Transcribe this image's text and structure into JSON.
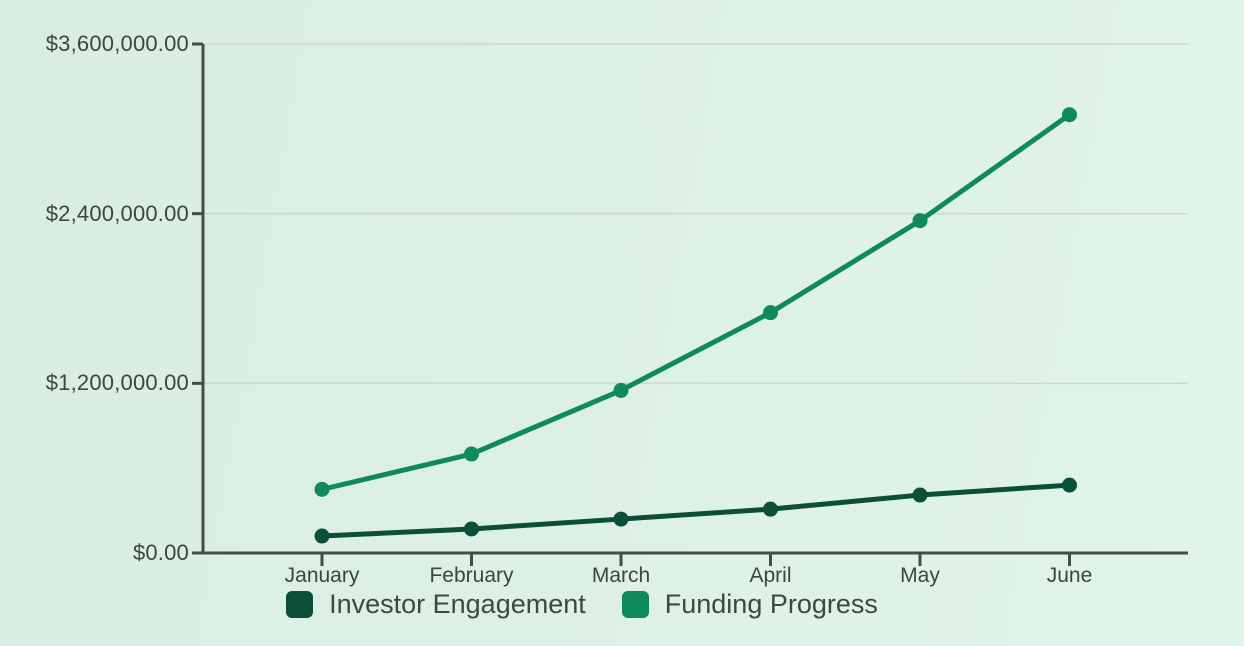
{
  "chart_data": {
    "type": "line",
    "title": "",
    "xlabel": "",
    "ylabel": "",
    "x": [
      "January",
      "February",
      "March",
      "April",
      "May",
      "June"
    ],
    "series": [
      {
        "name": "Investor Engagement",
        "color": "#0b4f38",
        "values": [
          120000,
          170000,
          240000,
          310000,
          410000,
          480000
        ]
      },
      {
        "name": "Funding Progress",
        "color": "#0e8a5c",
        "values": [
          450000,
          700000,
          1150000,
          1700000,
          2350000,
          3100000
        ]
      }
    ],
    "ylim": [
      0,
      3600000
    ],
    "y_ticks": [
      {
        "value": 0,
        "label": "$0.00"
      },
      {
        "value": 1200000,
        "label": "$1,200,000.00"
      },
      {
        "value": 2400000,
        "label": "$2,400,000.00"
      },
      {
        "value": 3600000,
        "label": "$3,600,000.00"
      }
    ],
    "grid": true,
    "legend_position": "bottom"
  },
  "colors": {
    "background": "#dceee4",
    "axis": "#454b49",
    "grid": "#ccd8d1",
    "tick_text": "#3d4543",
    "legend_text": "#3f4743"
  }
}
